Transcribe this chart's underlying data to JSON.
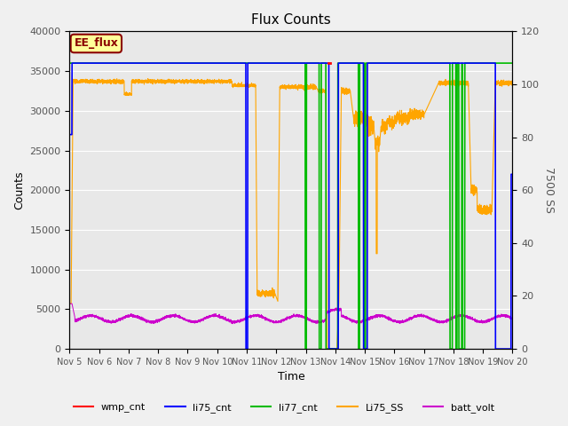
{
  "title": "Flux Counts",
  "xlabel": "Time",
  "ylabel_left": "Counts",
  "ylabel_right": "7500 SS",
  "ylim_left": [
    0,
    40000
  ],
  "ylim_right": [
    0,
    120
  ],
  "bg_color": "#e8e8e8",
  "fig_color": "#f0f0f0",
  "annotation_text": "EE_flux",
  "annotation_box_color": "#ffff99",
  "annotation_box_edge": "#8B0000",
  "annotation_text_color": "#8B0000",
  "colors": {
    "wmp_cnt": "#ff0000",
    "li75_cnt": "#0000ff",
    "li77_cnt": "#00bb00",
    "Li75_SS": "#ffa500",
    "batt_volt": "#cc00cc"
  },
  "x_ticks": [
    "Nov 5",
    "Nov 6",
    "Nov 7",
    "Nov 8",
    "Nov 9",
    "Nov 10",
    "Nov 11",
    "Nov 12",
    "Nov 13",
    "Nov 14",
    "Nov 15",
    "Nov 16",
    "Nov 17",
    "Nov 18",
    "Nov 19",
    "Nov 20"
  ],
  "grid_color": "#ffffff",
  "tick_label_color": "#555555"
}
